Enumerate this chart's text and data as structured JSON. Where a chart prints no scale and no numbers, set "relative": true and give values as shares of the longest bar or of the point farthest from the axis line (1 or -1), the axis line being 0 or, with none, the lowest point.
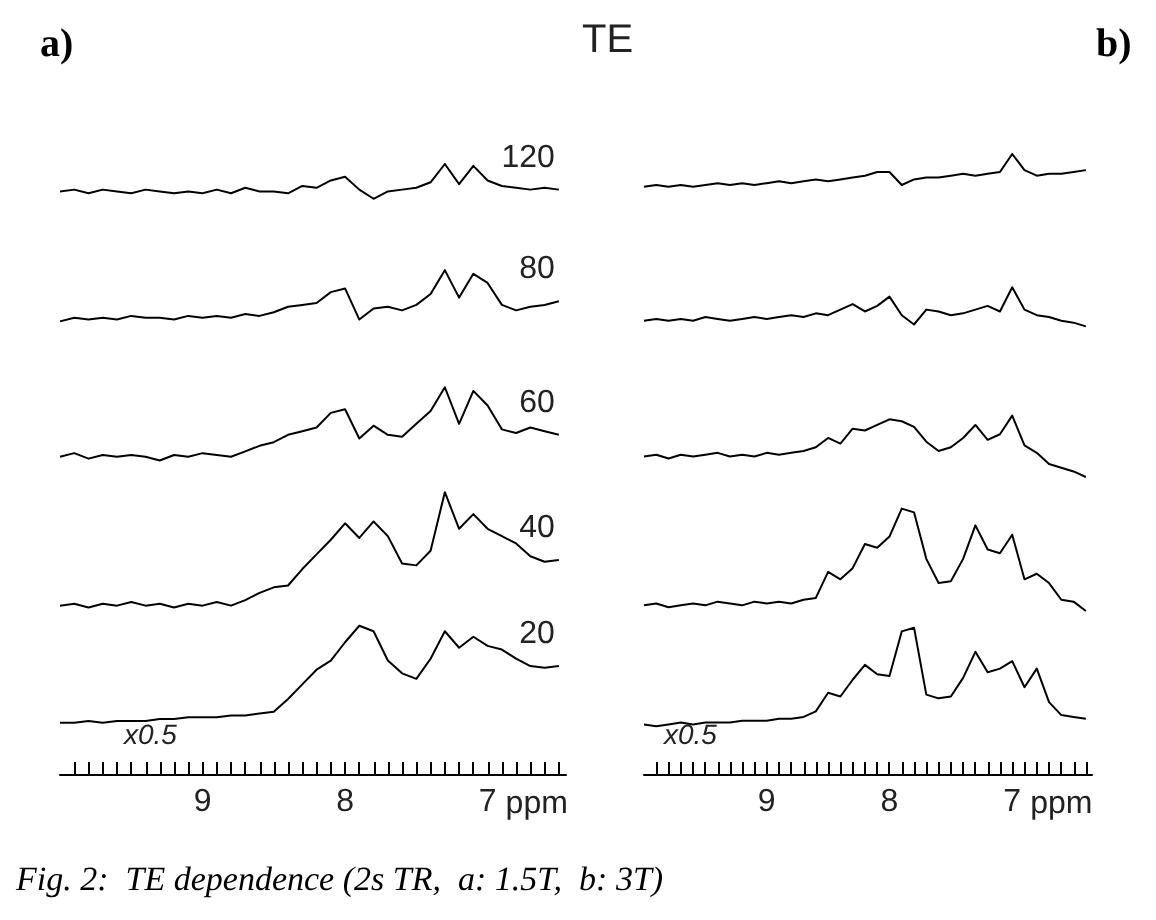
{
  "chart_data": [
    {
      "type": "line",
      "title": "a)",
      "legend_title": "TE",
      "xlabel": "ppm",
      "relative": true,
      "tick_labels": "x",
      "annotations": [
        "x0.5",
        "Fig. 2:  TE dependence (2s TR,  a: 1.5T,  b: 3T)"
      ],
      "xlim": [
        10,
        6.45
      ],
      "xticks": [
        {
          "value": 9.9,
          "label": null
        },
        {
          "value": 9.8,
          "label": null
        },
        {
          "value": 9.7,
          "label": null
        },
        {
          "value": 9.6,
          "label": null
        },
        {
          "value": 9.5,
          "label": null
        },
        {
          "value": 9.4,
          "label": null
        },
        {
          "value": 9.3,
          "label": null
        },
        {
          "value": 9.2,
          "label": null
        },
        {
          "value": 9.1,
          "label": null
        },
        9,
        {
          "value": 8.9,
          "label": null
        },
        {
          "value": 8.8,
          "label": null
        },
        {
          "value": 8.7,
          "label": null
        },
        {
          "value": 8.6,
          "label": null
        },
        {
          "value": 8.5,
          "label": null
        },
        {
          "value": 8.4,
          "label": null
        },
        {
          "value": 8.3,
          "label": null
        },
        {
          "value": 8.2,
          "label": null
        },
        {
          "value": 8.1,
          "label": null
        },
        8,
        {
          "value": 7.9,
          "label": null
        },
        {
          "value": 7.8,
          "label": null
        },
        {
          "value": 7.7,
          "label": null
        },
        {
          "value": 7.6,
          "label": null
        },
        {
          "value": 7.5,
          "label": null
        },
        {
          "value": 7.4,
          "label": null
        },
        {
          "value": 7.3,
          "label": null
        },
        {
          "value": 7.2,
          "label": null
        },
        {
          "value": 7.1,
          "label": null
        },
        7,
        {
          "value": 6.9,
          "label": null
        },
        {
          "value": 6.8,
          "label": null
        },
        {
          "value": 6.7,
          "label": null
        },
        {
          "value": 6.6,
          "label": null
        },
        {
          "value": 6.5,
          "label": null
        }
      ],
      "x": [
        10,
        9.9,
        9.8,
        9.7,
        9.6,
        9.5,
        9.4,
        9.3,
        9.2,
        9.1,
        9,
        8.9,
        8.8,
        8.7,
        8.6,
        8.5,
        8.4,
        8.3,
        8.2,
        8.1,
        8,
        7.9,
        7.8,
        7.7,
        7.6,
        7.5,
        7.4,
        7.3,
        7.2,
        7.1,
        7,
        6.9,
        6.8,
        6.7,
        6.6,
        6.5
      ],
      "series": [
        {
          "name": "120",
          "color": "#000000",
          "values": [
            0.955,
            0.958,
            0.952,
            0.958,
            0.955,
            0.952,
            0.958,
            0.955,
            0.952,
            0.955,
            0.952,
            0.958,
            0.952,
            0.961,
            0.955,
            0.955,
            0.952,
            0.964,
            0.961,
            0.973,
            0.979,
            0.958,
            0.943,
            0.955,
            0.958,
            0.961,
            0.97,
            1.0,
            0.967,
            0.997,
            0.973,
            0.964,
            0.961,
            0.958,
            0.961,
            0.958
          ]
        },
        {
          "name": "80",
          "color": "#000000",
          "values": [
            0.742,
            0.748,
            0.745,
            0.748,
            0.745,
            0.751,
            0.748,
            0.748,
            0.745,
            0.751,
            0.748,
            0.751,
            0.748,
            0.754,
            0.751,
            0.757,
            0.766,
            0.769,
            0.772,
            0.79,
            0.796,
            0.745,
            0.763,
            0.766,
            0.76,
            0.769,
            0.787,
            0.826,
            0.781,
            0.82,
            0.805,
            0.769,
            0.76,
            0.766,
            0.769,
            0.775
          ]
        },
        {
          "name": "60",
          "color": "#000000",
          "values": [
            0.52,
            0.526,
            0.517,
            0.523,
            0.52,
            0.523,
            0.52,
            0.514,
            0.523,
            0.52,
            0.526,
            0.523,
            0.52,
            0.529,
            0.538,
            0.544,
            0.556,
            0.562,
            0.568,
            0.592,
            0.598,
            0.55,
            0.571,
            0.556,
            0.553,
            0.574,
            0.595,
            0.634,
            0.574,
            0.628,
            0.604,
            0.565,
            0.559,
            0.568,
            0.562,
            0.556
          ]
        },
        {
          "name": "40",
          "color": "#000000",
          "values": [
            0.276,
            0.279,
            0.273,
            0.279,
            0.276,
            0.282,
            0.276,
            0.279,
            0.273,
            0.279,
            0.276,
            0.282,
            0.276,
            0.285,
            0.297,
            0.306,
            0.309,
            0.336,
            0.36,
            0.384,
            0.411,
            0.387,
            0.414,
            0.39,
            0.345,
            0.342,
            0.366,
            0.462,
            0.402,
            0.426,
            0.402,
            0.39,
            0.378,
            0.357,
            0.348,
            0.351
          ]
        },
        {
          "name": "20",
          "color": "#000000",
          "values": [
            0.084,
            0.084,
            0.087,
            0.084,
            0.087,
            0.087,
            0.087,
            0.09,
            0.09,
            0.093,
            0.093,
            0.093,
            0.096,
            0.096,
            0.099,
            0.102,
            0.123,
            0.147,
            0.171,
            0.186,
            0.216,
            0.243,
            0.234,
            0.186,
            0.165,
            0.156,
            0.189,
            0.234,
            0.207,
            0.225,
            0.21,
            0.204,
            0.189,
            0.177,
            0.174,
            0.177
          ]
        }
      ]
    },
    {
      "type": "line",
      "title": "b)",
      "xlabel": "ppm",
      "relative": true,
      "tick_labels": "x",
      "annotations": [
        "x0.5"
      ],
      "xlim": [
        10,
        6.35
      ],
      "xticks": [
        {
          "value": 9.9,
          "label": null
        },
        {
          "value": 9.8,
          "label": null
        },
        {
          "value": 9.7,
          "label": null
        },
        {
          "value": 9.6,
          "label": null
        },
        {
          "value": 9.5,
          "label": null
        },
        {
          "value": 9.4,
          "label": null
        },
        {
          "value": 9.3,
          "label": null
        },
        {
          "value": 9.2,
          "label": null
        },
        {
          "value": 9.1,
          "label": null
        },
        9,
        {
          "value": 8.9,
          "label": null
        },
        {
          "value": 8.8,
          "label": null
        },
        {
          "value": 8.7,
          "label": null
        },
        {
          "value": 8.6,
          "label": null
        },
        {
          "value": 8.5,
          "label": null
        },
        {
          "value": 8.4,
          "label": null
        },
        {
          "value": 8.3,
          "label": null
        },
        {
          "value": 8.2,
          "label": null
        },
        {
          "value": 8.1,
          "label": null
        },
        8,
        {
          "value": 7.9,
          "label": null
        },
        {
          "value": 7.8,
          "label": null
        },
        {
          "value": 7.7,
          "label": null
        },
        {
          "value": 7.6,
          "label": null
        },
        {
          "value": 7.5,
          "label": null
        },
        {
          "value": 7.4,
          "label": null
        },
        {
          "value": 7.3,
          "label": null
        },
        {
          "value": 7.2,
          "label": null
        },
        {
          "value": 7.1,
          "label": null
        },
        7,
        {
          "value": 6.9,
          "label": null
        },
        {
          "value": 6.8,
          "label": null
        },
        {
          "value": 6.7,
          "label": null
        },
        {
          "value": 6.6,
          "label": null
        },
        {
          "value": 6.5,
          "label": null
        },
        {
          "value": 6.4,
          "label": null
        }
      ],
      "x": [
        10,
        9.9,
        9.8,
        9.7,
        9.6,
        9.5,
        9.4,
        9.3,
        9.2,
        9.1,
        9,
        8.9,
        8.8,
        8.7,
        8.6,
        8.5,
        8.4,
        8.3,
        8.2,
        8.1,
        8,
        7.9,
        7.8,
        7.7,
        7.6,
        7.5,
        7.4,
        7.3,
        7.2,
        7.1,
        7,
        6.9,
        6.8,
        6.7,
        6.6,
        6.5,
        6.4
      ],
      "series": [
        {
          "color": "#000000",
          "values": [
            0.947,
            0.95,
            0.947,
            0.95,
            0.947,
            0.95,
            0.953,
            0.95,
            0.953,
            0.95,
            0.953,
            0.956,
            0.953,
            0.956,
            0.959,
            0.956,
            0.959,
            0.962,
            0.965,
            0.971,
            0.971,
            0.95,
            0.959,
            0.962,
            0.962,
            0.965,
            0.968,
            0.965,
            0.968,
            0.971,
            1.0,
            0.974,
            0.965,
            0.968,
            0.968,
            0.971,
            0.974
          ]
        },
        {
          "color": "#000000",
          "values": [
            0.731,
            0.734,
            0.731,
            0.734,
            0.731,
            0.737,
            0.734,
            0.731,
            0.734,
            0.737,
            0.734,
            0.737,
            0.74,
            0.737,
            0.743,
            0.74,
            0.749,
            0.758,
            0.746,
            0.755,
            0.77,
            0.74,
            0.725,
            0.749,
            0.746,
            0.74,
            0.743,
            0.749,
            0.755,
            0.746,
            0.785,
            0.749,
            0.74,
            0.737,
            0.731,
            0.728,
            0.722
          ]
        },
        {
          "color": "#000000",
          "values": [
            0.512,
            0.515,
            0.509,
            0.515,
            0.512,
            0.515,
            0.518,
            0.512,
            0.515,
            0.512,
            0.518,
            0.515,
            0.518,
            0.521,
            0.527,
            0.542,
            0.533,
            0.557,
            0.554,
            0.563,
            0.572,
            0.569,
            0.56,
            0.536,
            0.521,
            0.527,
            0.542,
            0.563,
            0.539,
            0.548,
            0.578,
            0.53,
            0.518,
            0.5,
            0.494,
            0.488,
            0.479
          ]
        },
        {
          "color": "#000000",
          "values": [
            0.272,
            0.275,
            0.269,
            0.272,
            0.275,
            0.272,
            0.278,
            0.275,
            0.272,
            0.278,
            0.275,
            0.278,
            0.275,
            0.281,
            0.284,
            0.326,
            0.314,
            0.332,
            0.371,
            0.365,
            0.383,
            0.428,
            0.422,
            0.347,
            0.308,
            0.311,
            0.347,
            0.401,
            0.362,
            0.356,
            0.386,
            0.314,
            0.323,
            0.308,
            0.281,
            0.278,
            0.263
          ]
        },
        {
          "color": "#000000",
          "values": [
            0.08,
            0.077,
            0.08,
            0.083,
            0.08,
            0.083,
            0.083,
            0.083,
            0.086,
            0.086,
            0.086,
            0.089,
            0.089,
            0.092,
            0.101,
            0.131,
            0.125,
            0.152,
            0.176,
            0.161,
            0.158,
            0.23,
            0.236,
            0.128,
            0.122,
            0.125,
            0.155,
            0.197,
            0.164,
            0.17,
            0.182,
            0.14,
            0.17,
            0.116,
            0.095,
            0.092,
            0.089
          ]
        }
      ]
    }
  ]
}
